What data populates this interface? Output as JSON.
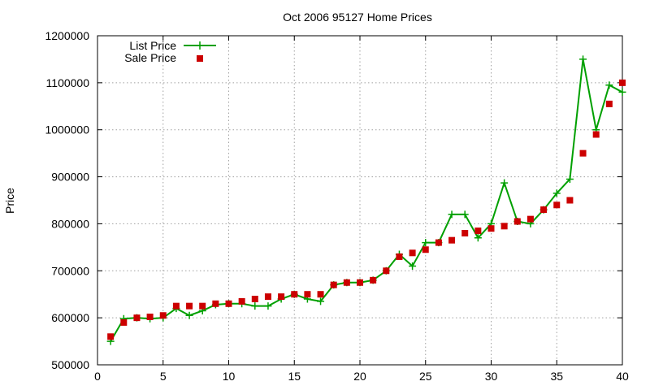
{
  "chart_data": {
    "type": "line",
    "title": "Oct 2006 95127 Home Prices",
    "xlabel": "",
    "ylabel": "Price",
    "xlim": [
      0,
      40
    ],
    "ylim": [
      500000,
      1200000
    ],
    "x_ticks": [
      0,
      5,
      10,
      15,
      20,
      25,
      30,
      35,
      40
    ],
    "y_ticks": [
      500000,
      600000,
      700000,
      800000,
      900000,
      1000000,
      1100000,
      1200000
    ],
    "grid": true,
    "legend_position": "top-left",
    "series": [
      {
        "name": "List Price",
        "style": "line-with-plus-markers",
        "color": "#00a000",
        "x": [
          1,
          2,
          3,
          4,
          5,
          6,
          7,
          8,
          9,
          10,
          11,
          12,
          13,
          14,
          15,
          16,
          17,
          18,
          19,
          20,
          21,
          22,
          23,
          24,
          25,
          26,
          27,
          28,
          29,
          30,
          31,
          32,
          33,
          34,
          35,
          36,
          37,
          38,
          39,
          40
        ],
        "values": [
          550000,
          598000,
          600000,
          598000,
          600000,
          620000,
          605000,
          615000,
          628000,
          630000,
          630000,
          625000,
          625000,
          640000,
          650000,
          640000,
          635000,
          670000,
          675000,
          675000,
          680000,
          700000,
          735000,
          710000,
          760000,
          760000,
          820000,
          820000,
          770000,
          800000,
          887000,
          805000,
          800000,
          830000,
          865000,
          895000,
          1150000,
          1000000,
          1095000,
          1080000
        ]
      },
      {
        "name": "Sale Price",
        "style": "square-markers",
        "color": "#cc0000",
        "x": [
          1,
          2,
          3,
          4,
          5,
          6,
          7,
          8,
          9,
          10,
          11,
          12,
          13,
          14,
          15,
          16,
          17,
          18,
          19,
          20,
          21,
          22,
          23,
          24,
          25,
          26,
          27,
          28,
          29,
          30,
          31,
          32,
          33,
          34,
          35,
          36,
          37,
          38,
          39,
          40
        ],
        "values": [
          560000,
          590000,
          600000,
          602000,
          605000,
          625000,
          625000,
          625000,
          630000,
          630000,
          635000,
          640000,
          645000,
          645000,
          650000,
          650000,
          650000,
          670000,
          675000,
          675000,
          680000,
          700000,
          730000,
          738000,
          745000,
          760000,
          765000,
          780000,
          785000,
          790000,
          795000,
          805000,
          810000,
          830000,
          840000,
          850000,
          950000,
          990000,
          1055000,
          1100000
        ]
      }
    ]
  }
}
